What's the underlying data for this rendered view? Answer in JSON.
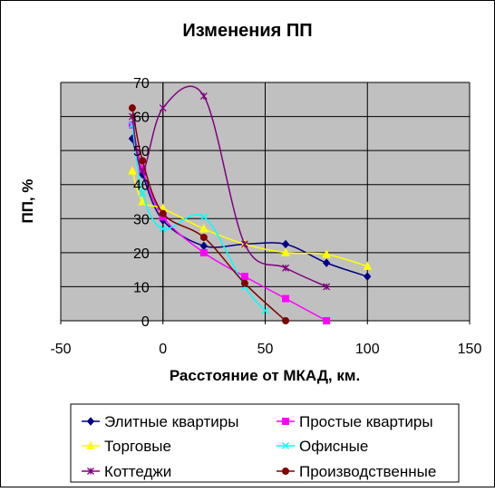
{
  "chart_data": {
    "type": "scatter",
    "title": "Изменения ПП",
    "xlabel": "Расстояние от МКАД, км.",
    "ylabel": "ПП, %",
    "xlim": [
      -50,
      150
    ],
    "ylim": [
      0,
      70
    ],
    "xticks": [
      -50,
      0,
      50,
      100,
      150
    ],
    "yticks": [
      0,
      10,
      20,
      30,
      40,
      50,
      60,
      70
    ],
    "plot_background": "#c0c0c0",
    "grid": true,
    "legend_position": "bottom",
    "smooth_lines": true,
    "series": [
      {
        "name": "Элитные квартиры",
        "color": "#000080",
        "marker": "diamond",
        "x": [
          -15,
          -10,
          0,
          20,
          40,
          60,
          80,
          100
        ],
        "y": [
          53.5,
          43,
          29.5,
          22,
          22.5,
          22.5,
          17,
          13
        ]
      },
      {
        "name": "Простые квартиры",
        "color": "#ff00ff",
        "marker": "square",
        "x": [
          -15,
          -10,
          0,
          20,
          40,
          60,
          80
        ],
        "y": [
          57.5,
          44.5,
          30.5,
          20,
          13,
          6.5,
          0
        ]
      },
      {
        "name": "Торговые",
        "color": "#ffff00",
        "marker": "triangle",
        "x": [
          -15,
          -10,
          0,
          20,
          40,
          60,
          80,
          100
        ],
        "y": [
          44,
          35,
          33,
          27,
          22.5,
          20,
          19.5,
          16
        ]
      },
      {
        "name": "Офисные",
        "color": "#00ffff",
        "marker": "x",
        "x": [
          -15,
          -10,
          0,
          20,
          40,
          50
        ],
        "y": [
          57.5,
          37.5,
          27,
          30.5,
          10,
          3
        ]
      },
      {
        "name": "Коттеджи",
        "color": "#800080",
        "marker": "asterisk",
        "x": [
          -15,
          -10,
          0,
          20,
          40,
          60,
          80
        ],
        "y": [
          60,
          44,
          62.5,
          66,
          22.5,
          15.5,
          10
        ]
      },
      {
        "name": "Производственные",
        "color": "#800000",
        "marker": "circle",
        "x": [
          -15,
          -10,
          0,
          20,
          40,
          60
        ],
        "y": [
          62.5,
          47,
          31.5,
          24.5,
          11,
          0
        ]
      }
    ]
  }
}
